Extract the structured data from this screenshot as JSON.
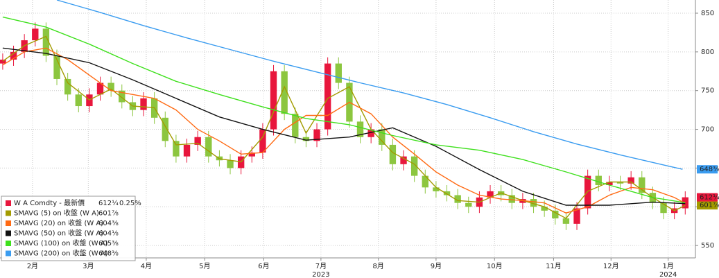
{
  "chart_data": {
    "type": "candlestick",
    "name": "W A Comdty - 最新價",
    "last_label": "612¼",
    "change_label": "0.25%",
    "color": "#e8163c",
    "up_color": "#e8163c",
    "down_color": "#8cc63f",
    "x": [
      1,
      5,
      9,
      13,
      17,
      21,
      25,
      29,
      33,
      37,
      41,
      45,
      49,
      53,
      57,
      61,
      65,
      69,
      73,
      77,
      81,
      85,
      89,
      93,
      97,
      101,
      105,
      109,
      113,
      117,
      121,
      125,
      129,
      133,
      137,
      141,
      145,
      149,
      153,
      157,
      161,
      165,
      169,
      173,
      177,
      181,
      185,
      189,
      193,
      197,
      201,
      205,
      209,
      213,
      217,
      221,
      225,
      229,
      233,
      237,
      241,
      245,
      249,
      253
    ],
    "open": [
      785,
      790,
      800,
      815,
      830,
      795,
      765,
      745,
      730,
      745,
      760,
      750,
      735,
      725,
      740,
      715,
      685,
      665,
      680,
      690,
      665,
      660,
      650,
      665,
      670,
      700,
      775,
      720,
      690,
      685,
      700,
      785,
      760,
      710,
      690,
      700,
      680,
      655,
      665,
      640,
      625,
      620,
      615,
      605,
      600,
      612,
      620,
      615,
      605,
      610,
      600,
      595,
      585,
      578,
      598,
      640,
      628,
      632,
      630,
      638,
      618,
      605,
      592,
      598
    ],
    "high": [
      798,
      808,
      823,
      838,
      838,
      803,
      773,
      753,
      753,
      768,
      768,
      758,
      743,
      748,
      748,
      723,
      693,
      688,
      698,
      698,
      673,
      668,
      673,
      678,
      708,
      783,
      783,
      728,
      698,
      708,
      793,
      793,
      768,
      718,
      708,
      708,
      688,
      673,
      673,
      648,
      633,
      628,
      623,
      613,
      620,
      628,
      628,
      623,
      618,
      618,
      608,
      603,
      593,
      606,
      648,
      648,
      640,
      640,
      646,
      646,
      626,
      613,
      606,
      620
    ],
    "low": [
      777,
      782,
      792,
      807,
      787,
      757,
      737,
      722,
      722,
      737,
      742,
      727,
      717,
      717,
      707,
      677,
      657,
      657,
      672,
      657,
      652,
      642,
      642,
      657,
      662,
      692,
      712,
      682,
      677,
      677,
      692,
      752,
      702,
      682,
      682,
      672,
      647,
      647,
      632,
      617,
      612,
      607,
      597,
      592,
      592,
      604,
      607,
      597,
      597,
      592,
      587,
      577,
      570,
      570,
      590,
      620,
      620,
      622,
      622,
      610,
      597,
      584,
      584,
      590
    ],
    "close": [
      790,
      800,
      815,
      830,
      795,
      765,
      745,
      730,
      745,
      760,
      750,
      735,
      725,
      740,
      715,
      685,
      665,
      680,
      690,
      665,
      660,
      650,
      665,
      670,
      700,
      775,
      720,
      690,
      685,
      700,
      785,
      760,
      710,
      690,
      700,
      680,
      655,
      665,
      640,
      625,
      620,
      615,
      605,
      600,
      612,
      620,
      615,
      605,
      610,
      600,
      595,
      585,
      578,
      598,
      640,
      628,
      632,
      630,
      638,
      618,
      605,
      592,
      598,
      612.25
    ],
    "overlays": [
      {
        "name": "SMAVG (5)  on 收盤 (W A)",
        "color": "#a39b00",
        "tag": true,
        "last_label": "601⅞",
        "x": [
          1,
          9,
          17,
          25,
          33,
          41,
          49,
          57,
          65,
          73,
          81,
          89,
          97,
          105,
          113,
          121,
          129,
          137,
          145,
          153,
          161,
          169,
          177,
          185,
          193,
          201,
          209,
          217,
          225,
          233,
          241,
          249,
          253
        ],
        "values": [
          788,
          808,
          820,
          760,
          738,
          752,
          730,
          728,
          680,
          682,
          662,
          658,
          690,
          755,
          695,
          740,
          755,
          700,
          670,
          655,
          625,
          608,
          606,
          618,
          608,
          600,
          585,
          620,
          632,
          632,
          612,
          595,
          601.875
        ]
      },
      {
        "name": "SMAVG (20)  on 收盤 (W A)",
        "color": "#ff6a13",
        "tag": false,
        "last_label": "604⅜",
        "x": [
          1,
          9,
          17,
          25,
          33,
          41,
          49,
          57,
          65,
          73,
          81,
          89,
          97,
          105,
          113,
          121,
          129,
          137,
          145,
          153,
          161,
          169,
          177,
          185,
          193,
          201,
          209,
          217,
          225,
          233,
          241,
          249,
          253
        ],
        "values": [
          783,
          800,
          805,
          790,
          770,
          750,
          745,
          740,
          725,
          700,
          685,
          668,
          670,
          700,
          718,
          718,
          735,
          720,
          690,
          668,
          645,
          628,
          615,
          610,
          608,
          605,
          592,
          600,
          615,
          625,
          622,
          612,
          604.375
        ]
      },
      {
        "name": "SMAVG (50)  on 收盤 (W A)",
        "color": "#111111",
        "tag": false,
        "last_label": "604⅛",
        "x": [
          1,
          17,
          33,
          49,
          65,
          81,
          97,
          113,
          129,
          145,
          161,
          177,
          193,
          209,
          225,
          241,
          253
        ],
        "values": [
          805,
          798,
          786,
          764,
          740,
          716,
          700,
          686,
          690,
          702,
          678,
          648,
          620,
          602,
          602,
          606,
          604.125
        ]
      },
      {
        "name": "SMAVG (100) on 收盤 (W A)",
        "color": "#3ee01c",
        "tag": false,
        "last_label": "605⅜",
        "x": [
          1,
          17,
          33,
          49,
          65,
          81,
          97,
          113,
          129,
          145,
          161,
          177,
          193,
          209,
          225,
          241,
          253
        ],
        "values": [
          845,
          832,
          810,
          785,
          762,
          745,
          729,
          714,
          706,
          692,
          680,
          673,
          661,
          645,
          628,
          612,
          605.375
        ]
      },
      {
        "name": "SMAVG (200) on 收盤 (W A)",
        "color": "#3a9cf0",
        "tag": true,
        "last_label": "648⅜",
        "x": [
          21,
          37,
          53,
          69,
          85,
          101,
          117,
          133,
          149,
          165,
          181,
          197,
          213,
          229,
          245,
          252
        ],
        "values": [
          867,
          851,
          834,
          818,
          803,
          788,
          774,
          760,
          747,
          732,
          715,
          697,
          681,
          667,
          654,
          648.375
        ]
      }
    ],
    "xlim": [
      0,
      256
    ],
    "xticks": [
      {
        "value": 12,
        "label": "2月"
      },
      {
        "value": 32.6,
        "label": "3月"
      },
      {
        "value": 54,
        "label": "4月"
      },
      {
        "value": 75.6,
        "label": "5月"
      },
      {
        "value": 97.4,
        "label": "6月"
      },
      {
        "value": 118.5,
        "label": "7月"
      },
      {
        "value": 139.7,
        "label": "8月"
      },
      {
        "value": 161,
        "label": "9月"
      },
      {
        "value": 182.6,
        "label": "10月"
      },
      {
        "value": 204.4,
        "label": "11月"
      },
      {
        "value": 225.6,
        "label": "12月"
      },
      {
        "value": 246.7,
        "label": "1月"
      }
    ],
    "year_labels": [
      {
        "value": 118.5,
        "label": "2023"
      },
      {
        "value": 246.7,
        "label": "2024"
      }
    ],
    "ylim": [
      534,
      867
    ],
    "yticks": [
      550,
      600,
      650,
      700,
      750,
      800,
      850
    ],
    "grid": true,
    "legend": "bottom-left"
  }
}
